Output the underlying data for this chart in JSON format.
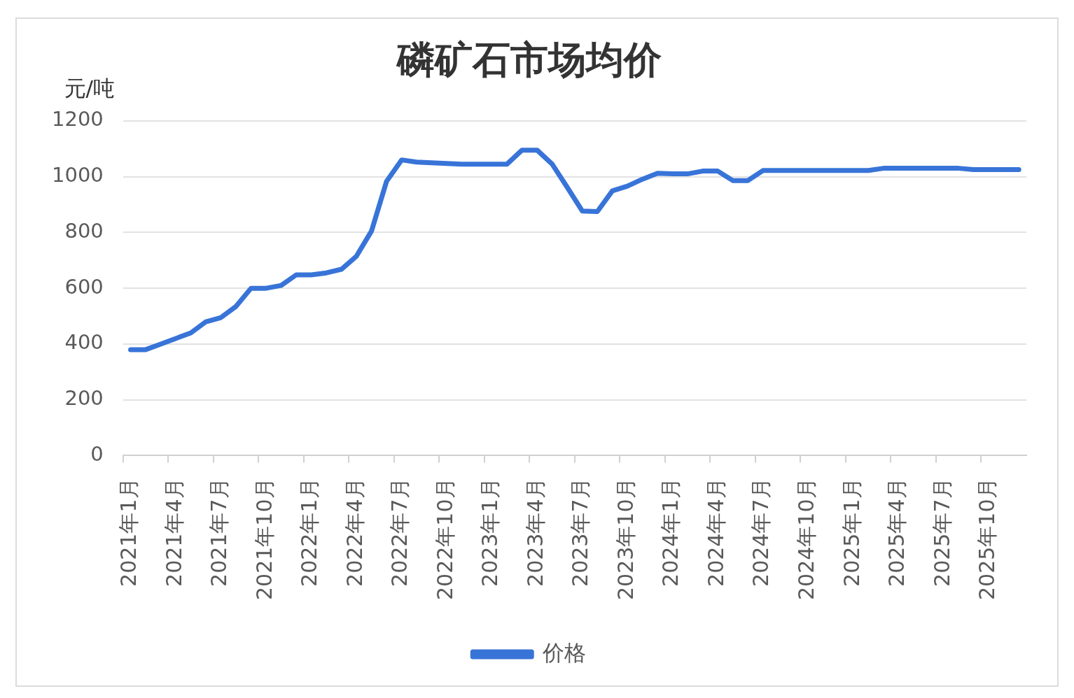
{
  "chart_data": {
    "type": "line",
    "title": "磷矿石市场均价",
    "ylabel": "元/吨",
    "categories": [
      "2021年1月",
      null,
      null,
      "2021年4月",
      null,
      null,
      "2021年7月",
      null,
      null,
      "2021年10月",
      null,
      null,
      "2022年1月",
      null,
      null,
      "2022年4月",
      null,
      null,
      "2022年7月",
      null,
      null,
      "2022年10月",
      null,
      null,
      "2023年1月",
      null,
      null,
      "2023年4月",
      null,
      null,
      "2023年7月",
      null,
      null,
      "2023年10月",
      null,
      null,
      "2024年1月",
      null,
      null,
      "2024年4月",
      null,
      null,
      "2024年7月",
      null,
      null,
      "2024年10月",
      null,
      null,
      "2025年1月",
      null,
      null,
      "2025年4月",
      null,
      null,
      "2025年7月",
      null,
      null,
      "2025年10月",
      null,
      null
    ],
    "series": [
      {
        "name": "价格",
        "color": "#3874d8",
        "values": [
          380,
          380,
          400,
          420,
          440,
          480,
          495,
          535,
          600,
          600,
          610,
          648,
          648,
          655,
          668,
          715,
          805,
          983,
          1060,
          1052,
          1050,
          1047,
          1045,
          1045,
          1045,
          1045,
          1095,
          1095,
          1045,
          962,
          877,
          875,
          949,
          966,
          991,
          1012,
          1010,
          1010,
          1020,
          1020,
          986,
          986,
          1022,
          1022,
          1022,
          1022,
          1022,
          1022,
          1022,
          1022,
          1030,
          1030,
          1030,
          1030,
          1030,
          1030,
          1025,
          1025,
          1025,
          1025
        ]
      }
    ],
    "ylim": [
      0,
      1200
    ],
    "yticks": [
      0,
      200,
      400,
      600,
      800,
      1000,
      1200
    ],
    "grid": "y",
    "legend": "bottom",
    "marker": "none",
    "line_style": "solid"
  }
}
